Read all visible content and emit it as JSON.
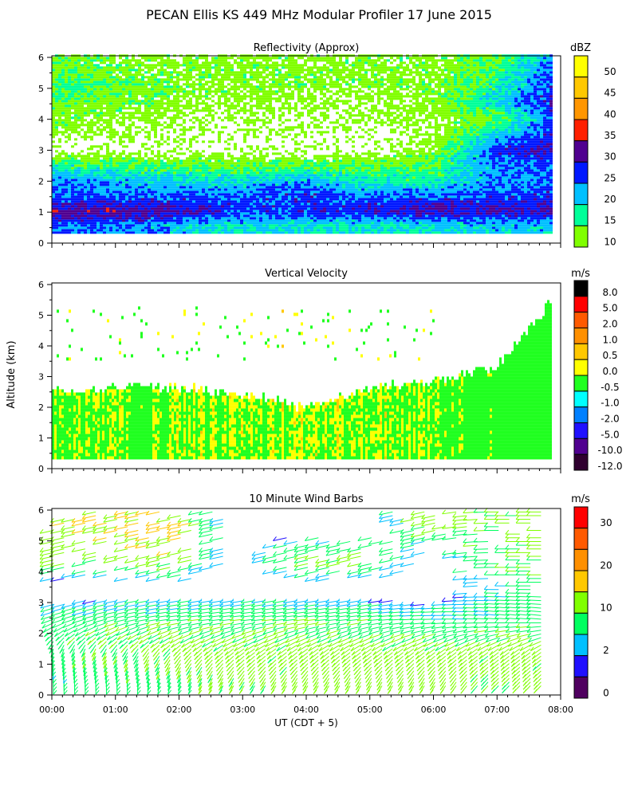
{
  "title": "PECAN Ellis KS 449 MHz Modular Profiler 17 June 2015",
  "ylabel": "Altitude (km)",
  "xlabel": "UT  (CDT + 5)",
  "x_tick_labels": [
    "00:00",
    "01:00",
    "02:00",
    "03:00",
    "04:00",
    "05:00",
    "06:00",
    "07:00",
    "08:00"
  ],
  "y_tick_labels": [
    "0",
    "1",
    "2",
    "3",
    "4",
    "5",
    "6"
  ],
  "chart_data": [
    {
      "type": "heatmap",
      "title": "Reflectivity (Approx)",
      "units": "dBZ",
      "xlim_hours": [
        0,
        8
      ],
      "ylim_km": [
        0,
        6
      ],
      "data_end_hour": 7.85,
      "data_bottom_km": 0.3,
      "hours": [
        0,
        1,
        2,
        3,
        4,
        5,
        6,
        7,
        8
      ],
      "altitudes_km": [
        0.5,
        1.0,
        1.5,
        2.0,
        2.5,
        3.0,
        3.5,
        4.0,
        4.5,
        5.0,
        5.5,
        6.0
      ],
      "values": [
        [
          25,
          25,
          22,
          20,
          20,
          20,
          20,
          22,
          22
        ],
        [
          33,
          33,
          30,
          27,
          28,
          28,
          32,
          30,
          30
        ],
        [
          25,
          25,
          26,
          26,
          28,
          25,
          26,
          27,
          27
        ],
        [
          24,
          22,
          20,
          20,
          22,
          18,
          18,
          24,
          26
        ],
        [
          17,
          15,
          14,
          14,
          14,
          14,
          16,
          25,
          28
        ],
        [
          8,
          8,
          8,
          8,
          8,
          8,
          12,
          28,
          30
        ],
        [
          12,
          10,
          9,
          9,
          9,
          8,
          10,
          20,
          30
        ],
        [
          13,
          12,
          10,
          10,
          10,
          10,
          11,
          14,
          28
        ],
        [
          14,
          13,
          12,
          11,
          11,
          10,
          12,
          22,
          30
        ],
        [
          17,
          14,
          12,
          12,
          12,
          12,
          12,
          18,
          30
        ],
        [
          15,
          13,
          12,
          12,
          12,
          12,
          12,
          16,
          28
        ],
        [
          13,
          12,
          12,
          12,
          12,
          12,
          12,
          14,
          25
        ]
      ],
      "colorbar": {
        "labels": [
          "50",
          "45",
          "40",
          "35",
          "30",
          "25",
          "20",
          "15",
          "10"
        ],
        "colors": [
          "#ffff00",
          "#ffc800",
          "#ff9600",
          "#ff2000",
          "#500090",
          "#0018ff",
          "#00c0ff",
          "#00ff99",
          "#80ff00"
        ],
        "thresholds": [
          50,
          45,
          40,
          35,
          30,
          25,
          20,
          15,
          10
        ]
      }
    },
    {
      "type": "heatmap",
      "title": "Vertical Velocity",
      "units": "m/s",
      "xlim_hours": [
        0,
        8
      ],
      "ylim_km": [
        0,
        6
      ],
      "data_end_hour": 7.85,
      "data_bottom_km": 0.3,
      "hours": [
        0,
        1,
        2,
        3,
        4,
        5,
        6,
        7,
        8
      ],
      "data_top_km": [
        2.5,
        2.6,
        2.6,
        2.4,
        1.9,
        2.6,
        2.8,
        3.3,
        5.8
      ],
      "mean_values": [
        -0.2,
        -0.2,
        -0.1,
        -0.1,
        0.0,
        -0.1,
        -0.2,
        -0.6,
        -1.0
      ],
      "colorbar": {
        "labels": [
          "8.0",
          "5.0",
          "2.0",
          "1.0",
          "0.5",
          "0.0",
          "-0.5",
          "-1.0",
          "-2.0",
          "-5.0",
          "-10.0",
          "-12.0"
        ],
        "colors": [
          "#000000",
          "#ff0000",
          "#ff5a00",
          "#ff9000",
          "#ffc800",
          "#ffff00",
          "#20ff20",
          "#00ffff",
          "#0080ff",
          "#2010ff",
          "#500090",
          "#300030"
        ],
        "thresholds": [
          8,
          5,
          2,
          1,
          0.5,
          0,
          -0.5,
          -1,
          -2,
          -5,
          -10,
          -12
        ]
      }
    },
    {
      "type": "wind_barbs",
      "title": "10 Minute Wind Barbs",
      "units": "m/s",
      "interval_minutes": 10,
      "xlim_hours": [
        0,
        8
      ],
      "ylim_km": [
        0,
        6
      ],
      "hours": [
        0,
        1,
        2,
        3,
        4,
        5,
        6,
        7,
        8
      ],
      "altitudes_km": [
        0.5,
        1.5,
        2.5,
        3.5,
        4.5,
        5.5
      ],
      "speed": [
        [
          6,
          8,
          10,
          11,
          12,
          12,
          12,
          11,
          11
        ],
        [
          9,
          10,
          12,
          12,
          12,
          12,
          12,
          12,
          12
        ],
        [
          6,
          8,
          9,
          9,
          9,
          8,
          5,
          6,
          8
        ],
        [
          0,
          0,
          0,
          0,
          0,
          0,
          0,
          5,
          9
        ],
        [
          12,
          13,
          14,
          0,
          12,
          12,
          0,
          10,
          12
        ],
        [
          14,
          15,
          16,
          0,
          0,
          0,
          13,
          10,
          14
        ]
      ],
      "direction_deg": [
        [
          180,
          180,
          190,
          200,
          200,
          200,
          200,
          210,
          210
        ],
        [
          190,
          200,
          210,
          220,
          220,
          220,
          220,
          220,
          220
        ],
        [
          240,
          250,
          260,
          260,
          260,
          260,
          270,
          280,
          280
        ],
        [
          250,
          250,
          250,
          250,
          250,
          250,
          250,
          270,
          270
        ],
        [
          250,
          250,
          250,
          250,
          250,
          250,
          250,
          270,
          270
        ],
        [
          250,
          250,
          250,
          250,
          250,
          250,
          250,
          270,
          270
        ]
      ],
      "colorbar": {
        "labels": [
          "30",
          "20",
          "10",
          "2",
          "0"
        ],
        "colors": [
          "#ff0000",
          "#ff5a00",
          "#ff9000",
          "#ffc800",
          "#80ff00",
          "#00ff60",
          "#00c0ff",
          "#2010ff",
          "#500060"
        ],
        "thresholds": [
          30,
          25,
          20,
          15,
          10,
          5,
          2,
          1,
          0
        ]
      }
    }
  ]
}
